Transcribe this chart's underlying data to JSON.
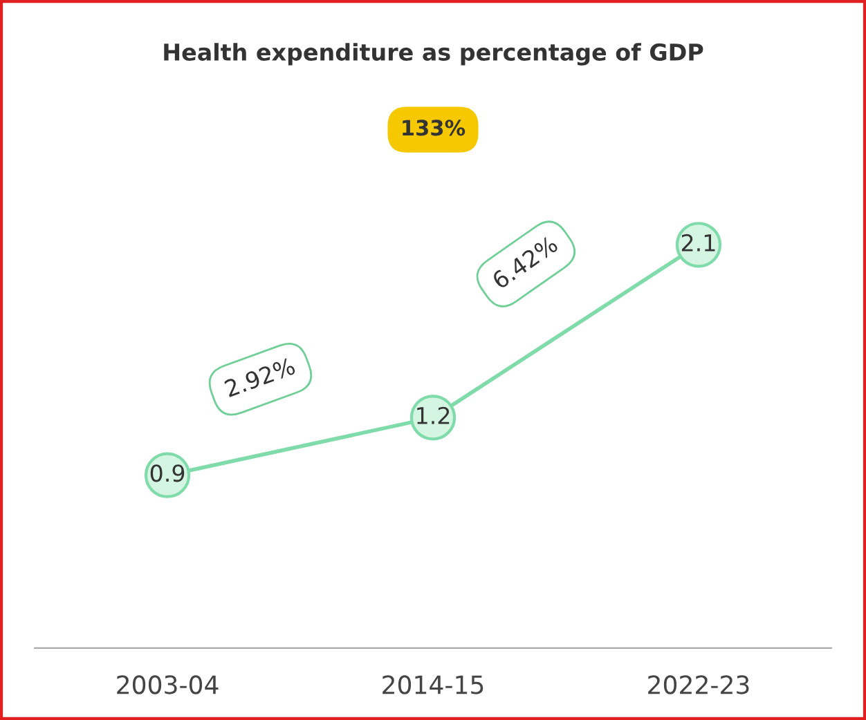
{
  "chart_data": {
    "type": "line",
    "title": "Health expenditure as percentage of GDP",
    "categories": [
      "2003-04",
      "2014-15",
      "2022-23"
    ],
    "series": [
      {
        "color": "#7fdcaa",
        "values": [
          0.9,
          1.2,
          2.1
        ]
      }
    ],
    "tick_labels": "x",
    "grid": false,
    "legend": false,
    "marker": "circle",
    "line_style": "solid",
    "data_labels": true,
    "annotations": [
      "133%",
      "2.92%",
      "6.42%"
    ]
  }
}
